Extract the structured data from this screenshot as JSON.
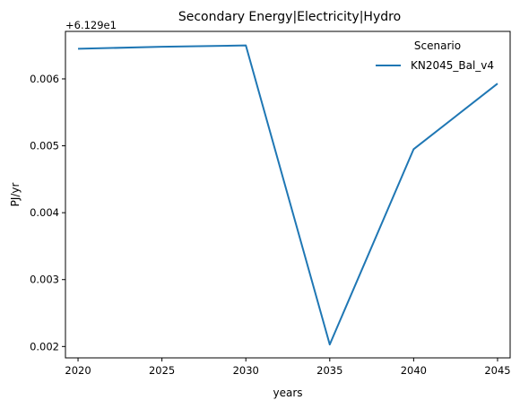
{
  "chart_data": {
    "type": "line",
    "title": "Secondary Energy|Electricity|Hydro",
    "xlabel": "years",
    "ylabel": "PJ/yr",
    "y_offset_label": "+6.129e1",
    "x": [
      2020,
      2025,
      2030,
      2035,
      2040,
      2045
    ],
    "x_ticks": [
      "2020",
      "2025",
      "2030",
      "2035",
      "2040",
      "2045"
    ],
    "y_ticks": [
      "0.002",
      "0.003",
      "0.004",
      "0.005",
      "0.006"
    ],
    "y_tick_values": [
      0.002,
      0.003,
      0.004,
      0.005,
      0.006
    ],
    "xlim": [
      2019.25,
      2045.75
    ],
    "ylim": [
      0.00183,
      0.00671
    ],
    "grid": false,
    "legend": {
      "title": "Scenario",
      "position": "top-right"
    },
    "series": [
      {
        "name": "KN2045_Bal_v4",
        "color": "#1f77b4",
        "values": [
          0.00645,
          0.00648,
          0.0065,
          0.00203,
          0.00495,
          0.00593
        ]
      }
    ]
  }
}
